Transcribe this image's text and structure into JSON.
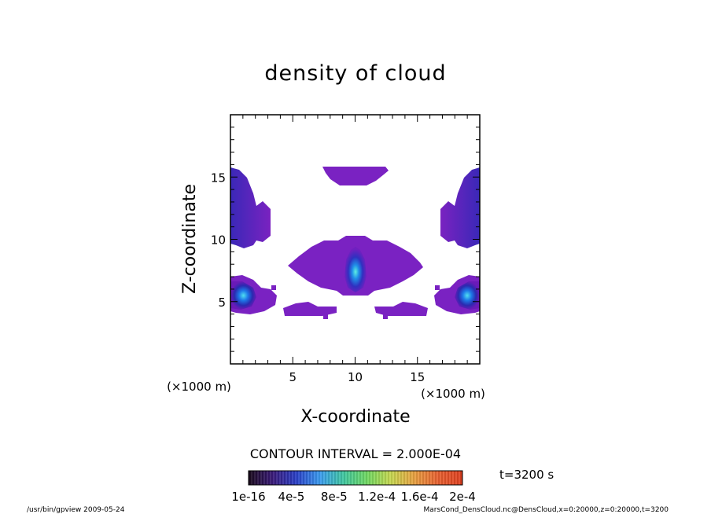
{
  "chart_data": {
    "type": "heatmap",
    "title": "density of cloud",
    "xlabel": "X-coordinate",
    "ylabel": "Z-coordinate",
    "x_unit": "(×1000 m)",
    "y_unit": "(×1000 m)",
    "xlim": [
      0,
      20
    ],
    "ylim": [
      0,
      20
    ],
    "x_ticks": [
      5,
      10,
      15
    ],
    "y_ticks": [
      5,
      10,
      15
    ],
    "contour_interval": "CONTOUR INTERVAL = 2.000E-04",
    "time_label": "t=3200 s",
    "colorbar": {
      "tick_labels": [
        "1e-16",
        "4e-5",
        "8e-5",
        "1.2e-4",
        "1.6e-4",
        "2e-4"
      ],
      "colors": [
        "#1a0a1e",
        "#3a1a7a",
        "#2a40c8",
        "#3a9cf0",
        "#40c8a0",
        "#70d860",
        "#c8d850",
        "#e8a040",
        "#e86030",
        "#e04020"
      ]
    },
    "regions": [
      {
        "x": 10,
        "z": 15.2,
        "level": 0
      },
      {
        "x": 0.8,
        "z": 13.5,
        "level": 0
      },
      {
        "x": 19.2,
        "z": 13.5,
        "level": 0
      },
      {
        "x": 10,
        "z": 8,
        "level": 1
      },
      {
        "x": 10,
        "z": 7.5,
        "level": 3
      },
      {
        "x": 1,
        "z": 5.5,
        "level": 3
      },
      {
        "x": 19,
        "z": 5.5,
        "level": 3
      },
      {
        "x": 6,
        "z": 4.3,
        "level": 0
      },
      {
        "x": 14,
        "z": 4.3,
        "level": 0
      }
    ]
  },
  "footer": {
    "left": "/usr/bin/gpview  2009-05-24",
    "right": "MarsCond_DensCloud.nc@DensCloud,x=0:20000,z=0:20000,t=3200"
  }
}
